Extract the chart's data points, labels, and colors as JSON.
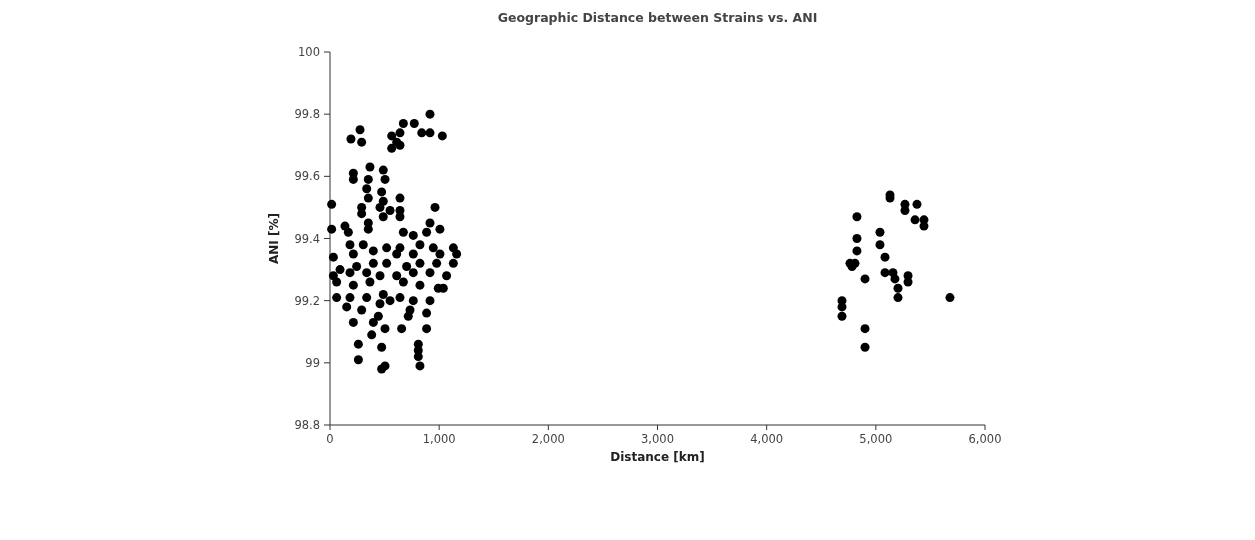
{
  "chart_data": {
    "type": "scatter",
    "title": "Geographic Distance between Strains vs. ANI",
    "xlabel": "Distance [km]",
    "ylabel": "ANI [%]",
    "xlim": [
      0,
      6000
    ],
    "ylim": [
      98.8,
      100
    ],
    "xticks": [
      0,
      {
        "value": 1000,
        "label": "1,000"
      },
      {
        "value": 2000,
        "label": "2,000"
      },
      {
        "value": 3000,
        "label": "3,000"
      },
      {
        "value": 4000,
        "label": "4,000"
      },
      {
        "value": 5000,
        "label": "5,000"
      },
      {
        "value": 6000,
        "label": "6,000"
      }
    ],
    "yticks": [
      98.8,
      99,
      99.2,
      99.4,
      99.6,
      99.8,
      100
    ],
    "marker": "circle",
    "series": [
      {
        "color": "#000000",
        "x": [
          916,
          672,
          772,
          840,
          916,
          1029,
          275,
          192,
          290,
          565,
          641,
          611,
          565,
          641,
          366,
          488,
          214,
          214,
          351,
          504,
          336,
          473,
          351,
          488,
          641,
          290,
          458,
          15,
          550,
          290,
          641,
          962,
          641,
          488,
          137,
          351,
          916,
          15,
          168,
          351,
          672,
          763,
          1007,
          885,
          183,
          305,
          519,
          641,
          824,
          946,
          1130,
          31,
          214,
          397,
          611,
          763,
          1007,
          1160,
          92,
          244,
          397,
          519,
          702,
          824,
          977,
          1130,
          31,
          183,
          336,
          458,
          611,
          763,
          916,
          1068,
          61,
          214,
          366,
          672,
          824,
          992,
          61,
          183,
          336,
          488,
          641,
          763,
          916,
          1038,
          153,
          290,
          458,
          550,
          733,
          885,
          717,
          214,
          397,
          443,
          504,
          656,
          885,
          382,
          260,
          473,
          809,
          809,
          260,
          809,
          824,
          473,
          504,
          5130,
          5130,
          5267,
          5267,
          5377,
          5359,
          5441,
          5441,
          4827,
          4827,
          4827,
          4809,
          4763,
          4782,
          5038,
          5038,
          5084,
          5084,
          5157,
          5175,
          5295,
          5295,
          5203,
          4901,
          5203,
          5679,
          4690,
          4690,
          4690,
          4901,
          4901
        ],
        "values": [
          99.8,
          99.77,
          99.77,
          99.74,
          99.74,
          99.73,
          99.75,
          99.72,
          99.71,
          99.73,
          99.74,
          99.71,
          99.69,
          99.7,
          99.63,
          99.62,
          99.61,
          99.59,
          99.59,
          99.59,
          99.56,
          99.55,
          99.53,
          99.52,
          99.53,
          99.5,
          99.5,
          99.51,
          99.49,
          99.48,
          99.49,
          99.5,
          99.47,
          99.47,
          99.44,
          99.45,
          99.45,
          99.43,
          99.42,
          99.43,
          99.42,
          99.41,
          99.43,
          99.42,
          99.38,
          99.38,
          99.37,
          99.37,
          99.38,
          99.37,
          99.37,
          99.34,
          99.35,
          99.36,
          99.35,
          99.35,
          99.35,
          99.35,
          99.3,
          99.31,
          99.32,
          99.32,
          99.31,
          99.32,
          99.32,
          99.32,
          99.28,
          99.29,
          99.29,
          99.28,
          99.28,
          99.29,
          99.29,
          99.28,
          99.26,
          99.25,
          99.26,
          99.26,
          99.25,
          99.24,
          99.21,
          99.21,
          99.21,
          99.22,
          99.21,
          99.2,
          99.2,
          99.24,
          99.18,
          99.17,
          99.19,
          99.2,
          99.17,
          99.16,
          99.15,
          99.13,
          99.13,
          99.15,
          99.11,
          99.11,
          99.11,
          99.09,
          99.06,
          99.05,
          99.06,
          99.04,
          99.01,
          99.02,
          98.99,
          98.98,
          98.99,
          99.53,
          99.54,
          99.51,
          99.49,
          99.51,
          99.46,
          99.46,
          99.44,
          99.47,
          99.4,
          99.36,
          99.32,
          99.32,
          99.31,
          99.42,
          99.38,
          99.34,
          99.29,
          99.29,
          99.27,
          99.28,
          99.26,
          99.24,
          99.27,
          99.21,
          99.21,
          99.2,
          99.18,
          99.15,
          99.11,
          99.05
        ]
      }
    ]
  }
}
